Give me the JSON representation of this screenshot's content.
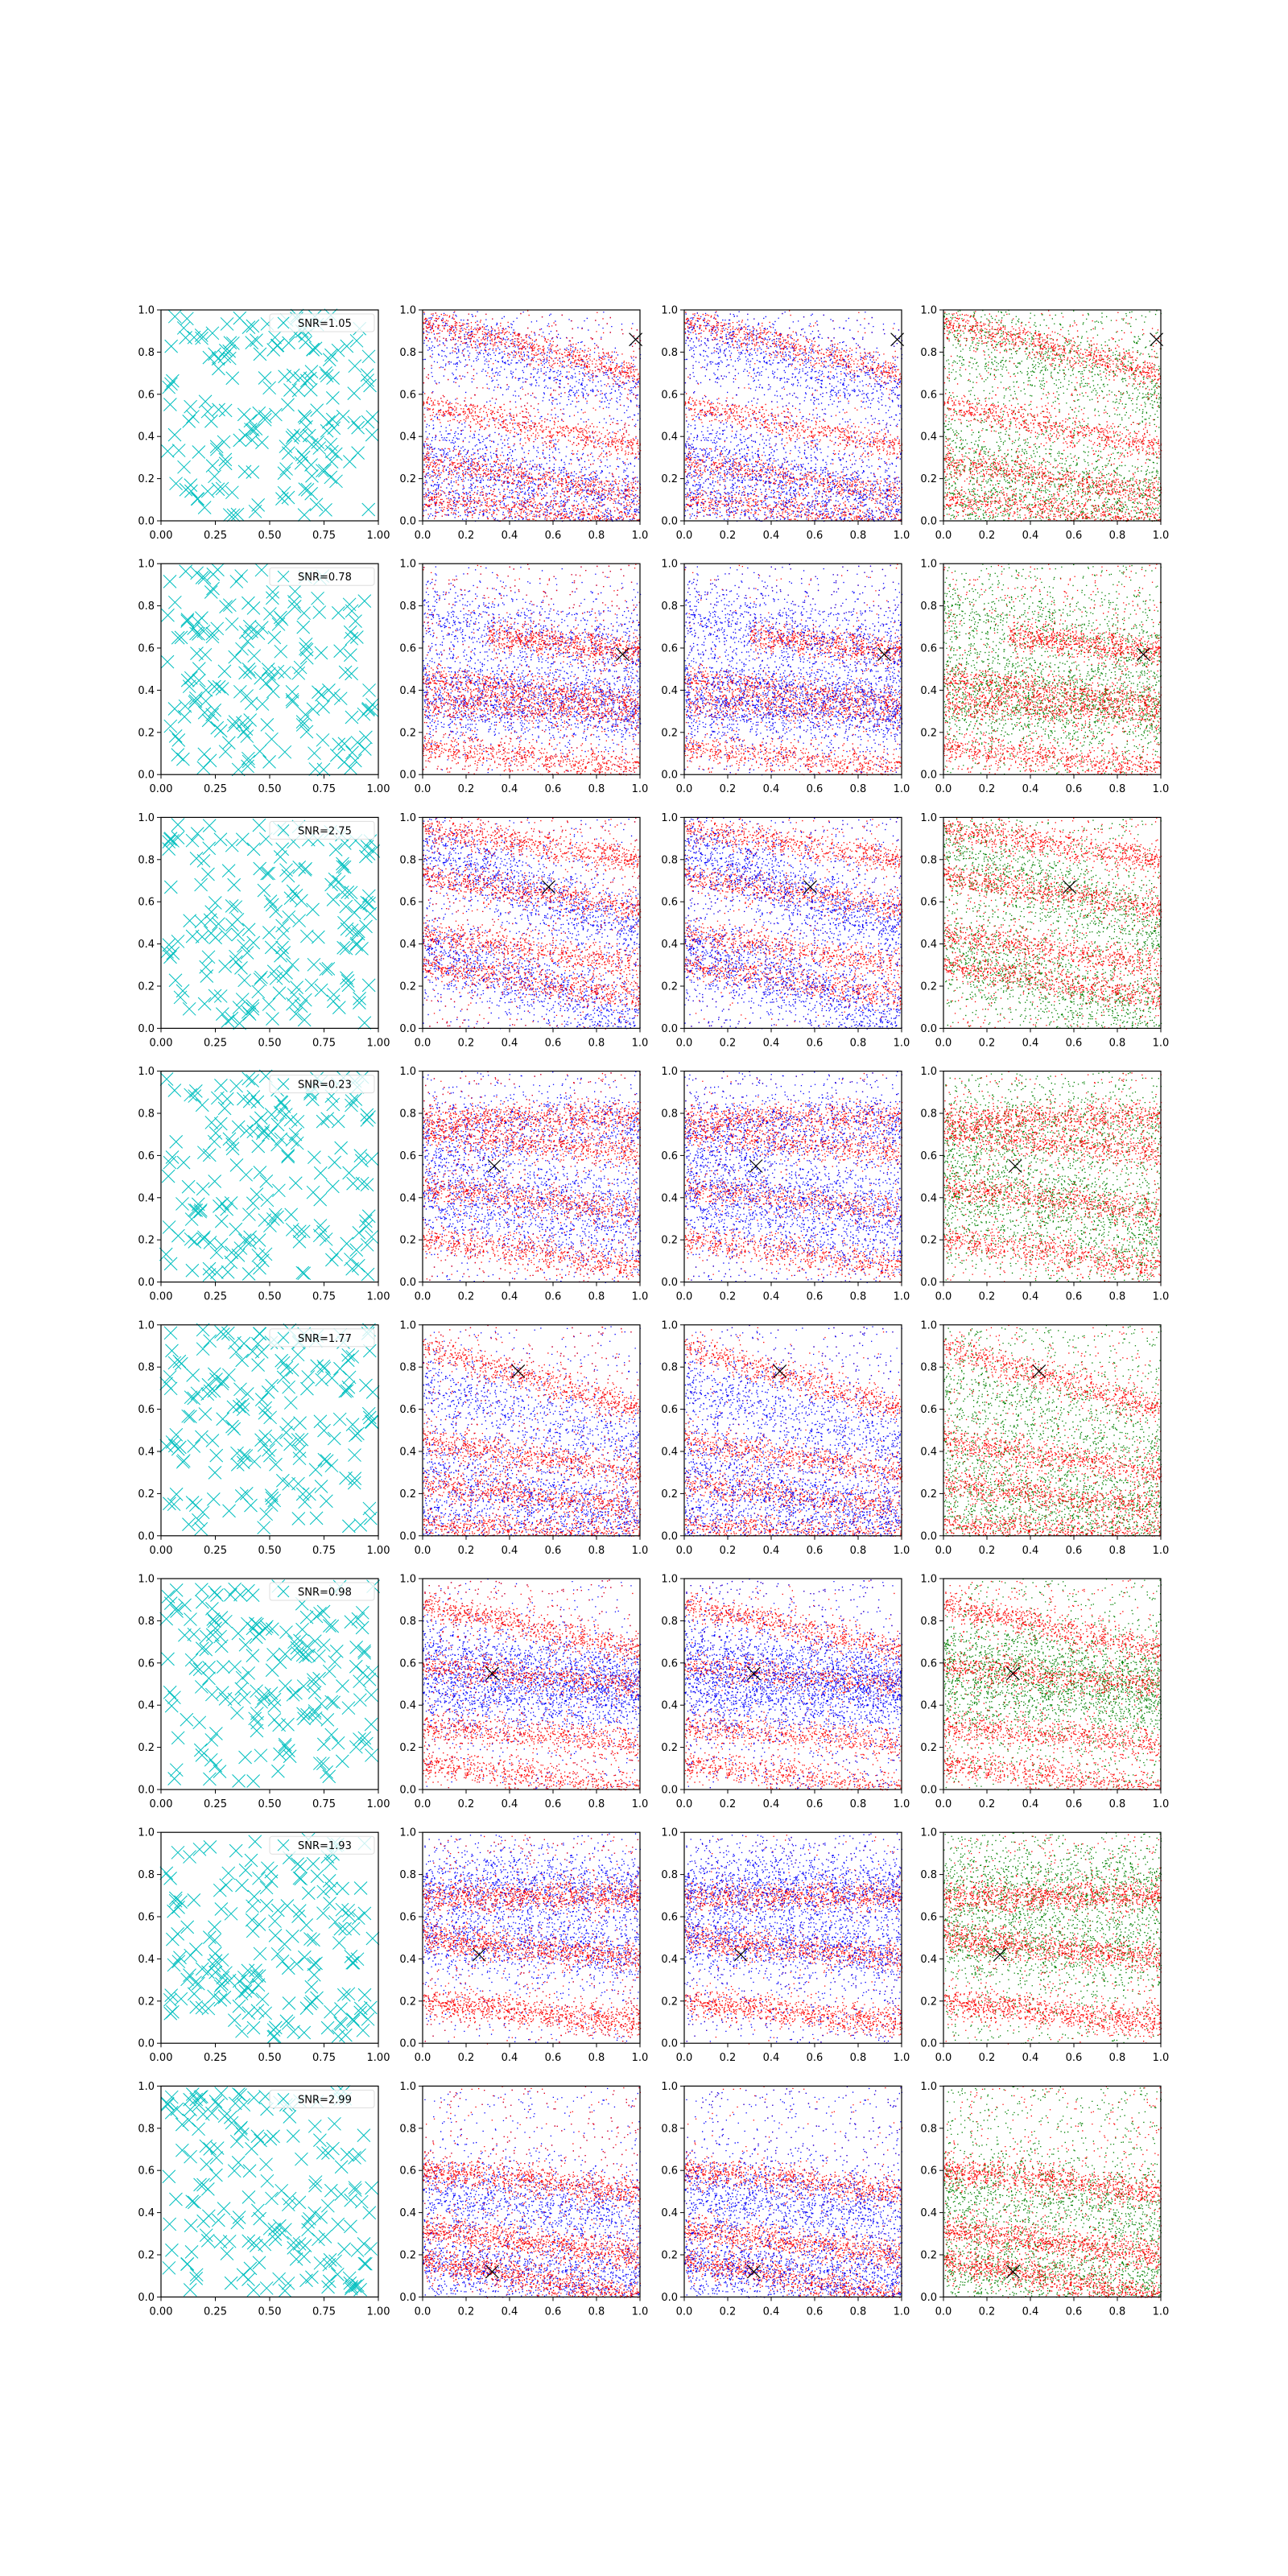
{
  "figure": {
    "rows": 8,
    "cols": 4
  },
  "colors": {
    "cyan": "#00bfbf",
    "red": "#ff0000",
    "blue": "#0000ff",
    "green": "#008000",
    "marker": "#000000"
  },
  "chart_data": {
    "type": "scatter",
    "xlim": [
      0,
      1
    ],
    "ylim": [
      0,
      1
    ],
    "first_col_xticks": [
      "0.00",
      "0.25",
      "0.50",
      "0.75",
      "1.00"
    ],
    "other_xticks": [
      "0.0",
      "0.2",
      "0.4",
      "0.6",
      "0.8",
      "1.0"
    ],
    "yticks": [
      "0.0",
      "0.2",
      "0.4",
      "0.6",
      "0.8",
      "1.0"
    ],
    "grid": false,
    "legend_placement": "upper right",
    "rows": [
      {
        "snr_label": "SNR=1.05",
        "target": [
          0.98,
          0.86
        ],
        "cross": [
          0.83,
          0.55
        ],
        "red_bands": [
          [
            0.0,
            0.95,
            -0.25
          ],
          [
            0.0,
            0.55,
            -0.2
          ],
          [
            0.0,
            0.28,
            -0.15
          ],
          [
            0.0,
            0.1,
            -0.1
          ]
        ],
        "blue_bands": [
          [
            0.0,
            0.9,
            -0.3
          ],
          [
            0.0,
            0.35,
            -0.25
          ],
          [
            0.0,
            0.12,
            -0.12
          ]
        ]
      },
      {
        "snr_label": "SNR=0.78",
        "target": [
          0.92,
          0.57
        ],
        "cross": [
          0.0,
          0.0
        ],
        "red_bands": [
          [
            0.3,
            0.7,
            -0.12
          ],
          [
            0.0,
            0.45,
            -0.1
          ],
          [
            0.0,
            0.34,
            -0.06
          ],
          [
            0.0,
            0.12,
            -0.08
          ]
        ],
        "blue_bands": [
          [
            0.0,
            0.48,
            -0.2
          ],
          [
            0.0,
            0.3,
            0.05
          ],
          [
            0.0,
            0.75,
            -0.15
          ]
        ]
      },
      {
        "snr_label": "SNR=2.75",
        "target": [
          0.58,
          0.67
        ],
        "cross": [
          0.0,
          0.0
        ],
        "red_bands": [
          [
            0.0,
            0.95,
            -0.15
          ],
          [
            0.0,
            0.72,
            -0.15
          ],
          [
            0.0,
            0.45,
            -0.15
          ],
          [
            0.0,
            0.3,
            -0.15
          ]
        ],
        "blue_bands": [
          [
            0.0,
            0.85,
            -0.4
          ],
          [
            0.0,
            0.38,
            -0.35
          ]
        ]
      },
      {
        "snr_label": "SNR=0.23",
        "target": [
          0.33,
          0.55
        ],
        "cross": [
          0.0,
          0.0
        ],
        "red_bands": [
          [
            0.0,
            0.78,
            0.0
          ],
          [
            0.0,
            0.7,
            -0.08
          ],
          [
            0.0,
            0.45,
            -0.12
          ],
          [
            0.0,
            0.2,
            -0.12
          ]
        ],
        "blue_bands": [
          [
            0.0,
            0.72,
            0.02
          ],
          [
            0.0,
            0.55,
            -0.2
          ],
          [
            0.0,
            0.35,
            -0.15
          ]
        ]
      },
      {
        "snr_label": "SNR=1.77",
        "target": [
          0.44,
          0.78
        ],
        "cross": [
          0.0,
          0.0
        ],
        "red_bands": [
          [
            0.0,
            0.9,
            -0.3
          ],
          [
            0.0,
            0.45,
            -0.15
          ],
          [
            0.0,
            0.25,
            -0.12
          ],
          [
            0.0,
            0.05,
            -0.05
          ]
        ],
        "blue_bands": [
          [
            0.0,
            0.72,
            -0.3
          ],
          [
            0.0,
            0.35,
            -0.25
          ],
          [
            0.0,
            0.08,
            -0.06
          ]
        ]
      },
      {
        "snr_label": "SNR=0.98",
        "target": [
          0.32,
          0.55
        ],
        "cross": [
          0.0,
          0.0
        ],
        "red_bands": [
          [
            0.0,
            0.88,
            -0.22
          ],
          [
            0.0,
            0.58,
            -0.08
          ],
          [
            0.0,
            0.3,
            -0.08
          ],
          [
            0.0,
            0.12,
            -0.12
          ]
        ],
        "blue_bands": [
          [
            0.0,
            0.65,
            -0.15
          ],
          [
            0.0,
            0.45,
            0.0
          ]
        ]
      },
      {
        "snr_label": "SNR=1.93",
        "target": [
          0.26,
          0.42
        ],
        "cross": [
          0.0,
          0.0
        ],
        "red_bands": [
          [
            0.0,
            0.7,
            0.0
          ],
          [
            0.0,
            0.5,
            -0.1
          ],
          [
            0.0,
            0.2,
            -0.1
          ]
        ],
        "blue_bands": [
          [
            0.0,
            0.75,
            0.0
          ],
          [
            0.0,
            0.5,
            -0.05
          ]
        ]
      },
      {
        "snr_label": "SNR=2.99",
        "target": [
          0.32,
          0.12
        ],
        "cross": [
          0.0,
          0.0
        ],
        "red_bands": [
          [
            0.0,
            0.18,
            -0.18
          ],
          [
            0.0,
            0.32,
            -0.12
          ],
          [
            0.0,
            0.6,
            -0.1
          ]
        ],
        "blue_bands": [
          [
            0.0,
            0.15,
            -0.08
          ],
          [
            0.0,
            0.5,
            -0.1
          ]
        ]
      }
    ]
  }
}
